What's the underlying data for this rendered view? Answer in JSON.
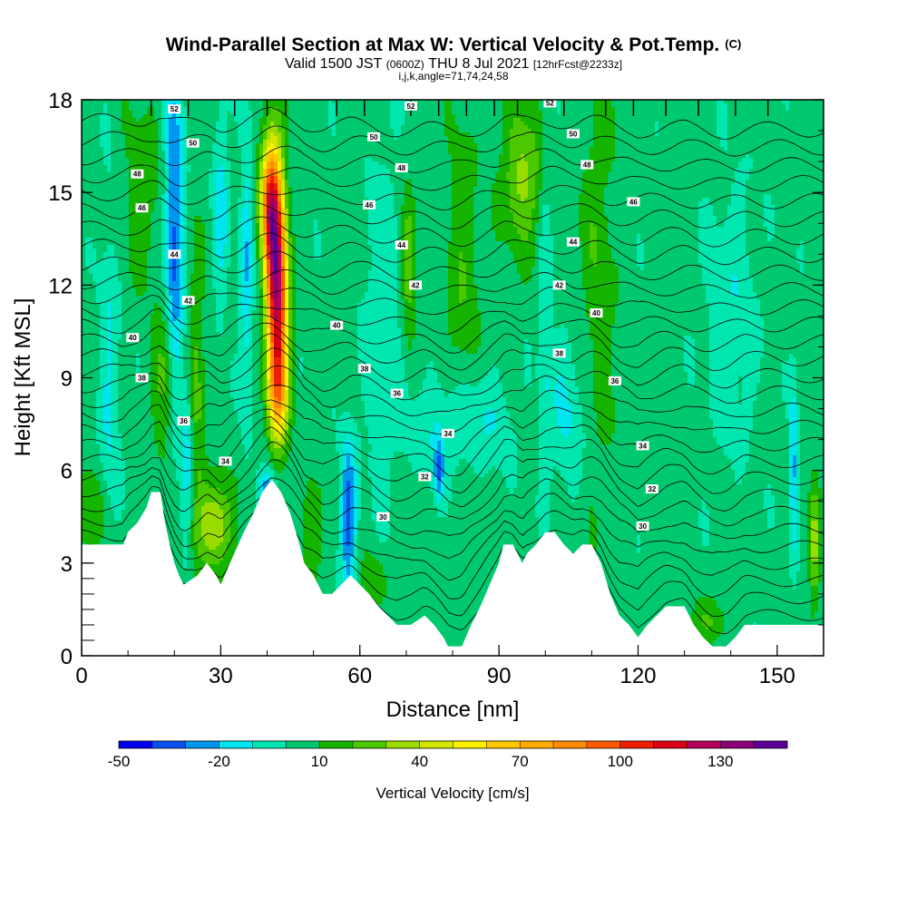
{
  "chart_data": {
    "type": "contour",
    "title": "Wind-Parallel Section at Max W: Vertical Velocity & Pot.Temp.",
    "title_mark": "(C)",
    "subtitle_valid": "Valid 1500 JST",
    "subtitle_utc": "(0600Z)",
    "subtitle_date": "THU 8 Jul 2021",
    "subtitle_fcst": "[12hrFcst@2233z]",
    "info": "i,j,k,angle=71,74,24,58",
    "xlabel": "Distance [nm]",
    "ylabel": "Height [Kft MSL]",
    "xlim": [
      0,
      160
    ],
    "ylim": [
      0,
      18
    ],
    "x_ticks": [
      0,
      30,
      60,
      90,
      120,
      150
    ],
    "y_ticks": [
      0,
      3,
      6,
      9,
      12,
      15,
      18
    ],
    "colorbar": {
      "label": "Vertical Velocity [cm/s]",
      "tick_labels": [
        "-50",
        "-20",
        "10",
        "40",
        "70",
        "100",
        "130"
      ],
      "tick_values": [
        -50,
        -20,
        10,
        40,
        70,
        100,
        130
      ],
      "levels": [
        -50,
        -40,
        -30,
        -20,
        -10,
        0,
        10,
        20,
        30,
        40,
        50,
        60,
        70,
        80,
        90,
        100,
        110,
        120,
        130,
        140,
        150
      ],
      "colors": [
        "#0000f0",
        "#0a50f0",
        "#0096f0",
        "#00e6f0",
        "#00e6b0",
        "#00c86e",
        "#14b400",
        "#4bc800",
        "#9bdc00",
        "#d2e600",
        "#fff000",
        "#ffc800",
        "#ffaa00",
        "#ff8c00",
        "#ff5a00",
        "#f01e00",
        "#dc0014",
        "#b4005a",
        "#8c0078",
        "#5a0096"
      ]
    },
    "terrain_kft": [
      [
        0,
        3.6
      ],
      [
        9,
        3.6
      ],
      [
        10,
        4.0
      ],
      [
        12,
        4.3
      ],
      [
        14,
        4.8
      ],
      [
        15,
        5.3
      ],
      [
        17,
        5.3
      ],
      [
        18,
        4.3
      ],
      [
        19,
        3.6
      ],
      [
        20,
        3.0
      ],
      [
        21,
        2.6
      ],
      [
        22,
        2.3
      ],
      [
        25,
        2.6
      ],
      [
        27,
        3.0
      ],
      [
        29,
        2.6
      ],
      [
        30,
        2.3
      ],
      [
        32,
        3.0
      ],
      [
        35,
        4.0
      ],
      [
        37,
        4.6
      ],
      [
        39,
        5.3
      ],
      [
        41,
        5.7
      ],
      [
        43,
        5.3
      ],
      [
        45,
        4.6
      ],
      [
        47,
        3.6
      ],
      [
        48,
        3.0
      ],
      [
        50,
        2.6
      ],
      [
        52,
        2.0
      ],
      [
        54,
        2.0
      ],
      [
        56,
        2.3
      ],
      [
        58,
        2.6
      ],
      [
        60,
        2.3
      ],
      [
        62,
        2.0
      ],
      [
        64,
        1.6
      ],
      [
        66,
        1.3
      ],
      [
        68,
        1.0
      ],
      [
        71,
        1.0
      ],
      [
        74,
        1.3
      ],
      [
        76,
        1.0
      ],
      [
        78,
        0.6
      ],
      [
        79,
        0.3
      ],
      [
        82,
        0.3
      ],
      [
        84,
        1.0
      ],
      [
        86,
        1.6
      ],
      [
        88,
        2.3
      ],
      [
        90,
        3.0
      ],
      [
        91,
        3.6
      ],
      [
        93,
        3.6
      ],
      [
        95,
        3.0
      ],
      [
        96,
        3.3
      ],
      [
        98,
        3.6
      ],
      [
        100,
        4.0
      ],
      [
        102,
        4.0
      ],
      [
        104,
        3.6
      ],
      [
        106,
        3.3
      ],
      [
        108,
        3.6
      ],
      [
        110,
        3.6
      ],
      [
        112,
        3.0
      ],
      [
        114,
        2.0
      ],
      [
        116,
        1.3
      ],
      [
        118,
        1.0
      ],
      [
        120,
        0.6
      ],
      [
        122,
        1.0
      ],
      [
        124,
        1.3
      ],
      [
        126,
        1.6
      ],
      [
        128,
        1.6
      ],
      [
        130,
        1.6
      ],
      [
        132,
        1.0
      ],
      [
        134,
        0.6
      ],
      [
        136,
        0.3
      ],
      [
        139,
        0.3
      ],
      [
        141,
        0.6
      ],
      [
        143,
        1.0
      ],
      [
        146,
        1.0
      ],
      [
        150,
        1.0
      ],
      [
        155,
        1.0
      ],
      [
        160,
        1.0
      ]
    ],
    "updrafts": [
      {
        "x": 42,
        "y": 12.2,
        "sx": 1.6,
        "sy": 2.6,
        "w": 130,
        "tilt": -0.12
      },
      {
        "x": 40.5,
        "y": 14.8,
        "sx": 1.5,
        "sy": 1.3,
        "w": 55,
        "tilt": 0
      },
      {
        "x": 42,
        "y": 8.5,
        "sx": 1.5,
        "sy": 1.2,
        "w": 45,
        "tilt": 0
      },
      {
        "x": 29,
        "y": 4.3,
        "sx": 2.4,
        "sy": 1.0,
        "w": 38,
        "tilt": 0
      },
      {
        "x": 18,
        "y": 9.0,
        "sx": 1.6,
        "sy": 1.6,
        "w": 25,
        "tilt": 0
      },
      {
        "x": 24.5,
        "y": 8.0,
        "sx": 1.4,
        "sy": 3.5,
        "w": 22,
        "tilt": 0
      },
      {
        "x": 95,
        "y": 15.5,
        "sx": 3.0,
        "sy": 1.6,
        "w": 30,
        "tilt": 0
      },
      {
        "x": 70.5,
        "y": 12.8,
        "sx": 1.0,
        "sy": 1.5,
        "w": 30,
        "tilt": 0
      },
      {
        "x": 82,
        "y": 12.0,
        "sx": 2.5,
        "sy": 4.0,
        "w": 14,
        "tilt": 0
      },
      {
        "x": 111,
        "y": 12.5,
        "sx": 3.0,
        "sy": 5.0,
        "w": 13,
        "tilt": 0
      },
      {
        "x": 158,
        "y": 3.5,
        "sx": 0.8,
        "sy": 1.4,
        "w": 30,
        "tilt": 0
      },
      {
        "x": 2,
        "y": 4.5,
        "sx": 2.0,
        "sy": 1.0,
        "w": 18,
        "tilt": 0
      },
      {
        "x": 63,
        "y": 2.5,
        "sx": 2.0,
        "sy": 0.6,
        "w": 14,
        "tilt": 0
      },
      {
        "x": 135,
        "y": 1.1,
        "sx": 3.0,
        "sy": 0.5,
        "w": 14,
        "tilt": 0
      },
      {
        "x": 13,
        "y": 15.0,
        "sx": 3.0,
        "sy": 2.0,
        "w": 14,
        "tilt": 0
      },
      {
        "x": 50,
        "y": 4.0,
        "sx": 1.5,
        "sy": 1.2,
        "w": 18,
        "tilt": 0
      }
    ],
    "downdrafts": [
      {
        "x": 20,
        "y": 13.5,
        "sx": 1.5,
        "sy": 4.0,
        "w": -38,
        "tilt": 0
      },
      {
        "x": 23,
        "y": 6.5,
        "sx": 1.0,
        "sy": 2.0,
        "w": -25,
        "tilt": 0
      },
      {
        "x": 40,
        "y": 5.2,
        "sx": 1.2,
        "sy": 0.6,
        "w": -40,
        "tilt": 0
      },
      {
        "x": 57.5,
        "y": 4.5,
        "sx": 1.2,
        "sy": 1.8,
        "w": -38,
        "tilt": 0
      },
      {
        "x": 35.5,
        "y": 12.5,
        "sx": 1.0,
        "sy": 3.5,
        "w": -22,
        "tilt": 0
      },
      {
        "x": 30,
        "y": 14.5,
        "sx": 1.2,
        "sy": 2.5,
        "w": -18,
        "tilt": 0
      },
      {
        "x": 82,
        "y": 7.5,
        "sx": 7.0,
        "sy": 1.2,
        "w": -18,
        "tilt": 0
      },
      {
        "x": 105,
        "y": 8.0,
        "sx": 3.0,
        "sy": 2.0,
        "w": -15,
        "tilt": 0
      },
      {
        "x": 153.5,
        "y": 6.0,
        "sx": 0.6,
        "sy": 2.0,
        "w": -28,
        "tilt": 0
      },
      {
        "x": 140,
        "y": 11.0,
        "sx": 4.0,
        "sy": 3.0,
        "w": -12,
        "tilt": 0
      },
      {
        "x": 77,
        "y": 6.0,
        "sx": 0.8,
        "sy": 0.7,
        "w": -30,
        "tilt": 0
      },
      {
        "x": 65,
        "y": 11.0,
        "sx": 3.0,
        "sy": 4.0,
        "w": -12,
        "tilt": 0
      },
      {
        "x": 6,
        "y": 9.0,
        "sx": 1.5,
        "sy": 4.0,
        "w": -15,
        "tilt": 0
      },
      {
        "x": 100,
        "y": 11.0,
        "sx": 1.0,
        "sy": 4.0,
        "w": -12,
        "tilt": 0
      }
    ],
    "theta_contours": {
      "base": 25,
      "step": 1,
      "count": 29,
      "surface_offset": 0.7,
      "spacing_kft": 0.58,
      "labels": [
        {
          "x": 20,
          "y": 17.7,
          "t": "52"
        },
        {
          "x": 71,
          "y": 17.8,
          "t": "52"
        },
        {
          "x": 101,
          "y": 17.9,
          "t": "52"
        },
        {
          "x": 24,
          "y": 16.6,
          "t": "50"
        },
        {
          "x": 63,
          "y": 16.8,
          "t": "50"
        },
        {
          "x": 106,
          "y": 16.9,
          "t": "50"
        },
        {
          "x": 12,
          "y": 15.6,
          "t": "48"
        },
        {
          "x": 69,
          "y": 15.8,
          "t": "48"
        },
        {
          "x": 109,
          "y": 15.9,
          "t": "48"
        },
        {
          "x": 13,
          "y": 14.5,
          "t": "46"
        },
        {
          "x": 62,
          "y": 14.6,
          "t": "46"
        },
        {
          "x": 119,
          "y": 14.7,
          "t": "46"
        },
        {
          "x": 20,
          "y": 13.0,
          "t": "44"
        },
        {
          "x": 69,
          "y": 13.3,
          "t": "44"
        },
        {
          "x": 106,
          "y": 13.4,
          "t": "44"
        },
        {
          "x": 23,
          "y": 11.5,
          "t": "42"
        },
        {
          "x": 72,
          "y": 12.0,
          "t": "42"
        },
        {
          "x": 103,
          "y": 12.0,
          "t": "42"
        },
        {
          "x": 11,
          "y": 10.3,
          "t": "40"
        },
        {
          "x": 55,
          "y": 10.7,
          "t": "40"
        },
        {
          "x": 111,
          "y": 11.1,
          "t": "40"
        },
        {
          "x": 13,
          "y": 9.0,
          "t": "38"
        },
        {
          "x": 61,
          "y": 9.3,
          "t": "38"
        },
        {
          "x": 103,
          "y": 9.8,
          "t": "38"
        },
        {
          "x": 22,
          "y": 7.6,
          "t": "36"
        },
        {
          "x": 68,
          "y": 8.5,
          "t": "36"
        },
        {
          "x": 115,
          "y": 8.9,
          "t": "36"
        },
        {
          "x": 31,
          "y": 6.3,
          "t": "34"
        },
        {
          "x": 79,
          "y": 7.2,
          "t": "34"
        },
        {
          "x": 121,
          "y": 6.8,
          "t": "34"
        },
        {
          "x": 74,
          "y": 5.8,
          "t": "32"
        },
        {
          "x": 123,
          "y": 5.4,
          "t": "32"
        },
        {
          "x": 65,
          "y": 4.5,
          "t": "30"
        },
        {
          "x": 121,
          "y": 4.2,
          "t": "30"
        }
      ]
    }
  }
}
